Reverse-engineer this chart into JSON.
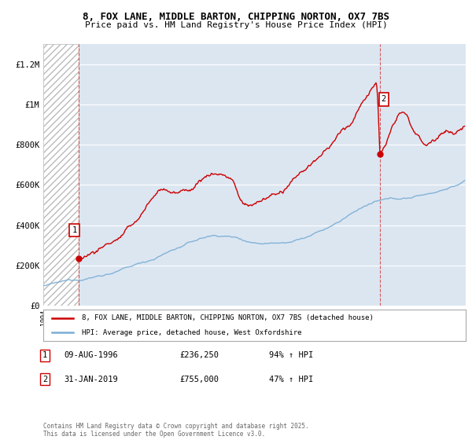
{
  "title1": "8, FOX LANE, MIDDLE BARTON, CHIPPING NORTON, OX7 7BS",
  "title2": "Price paid vs. HM Land Registry's House Price Index (HPI)",
  "ylim": [
    0,
    1300000
  ],
  "xlim_start": 1994.0,
  "xlim_end": 2025.5,
  "yticks": [
    0,
    200000,
    400000,
    600000,
    800000,
    1000000,
    1200000
  ],
  "ytick_labels": [
    "£0",
    "£200K",
    "£400K",
    "£600K",
    "£800K",
    "£1M",
    "£1.2M"
  ],
  "background_color": "#dce6f1",
  "hatch_end_year": 1996.6,
  "red_line_color": "#cc0000",
  "blue_line_color": "#7aadd4",
  "marker1_year": 1996.6,
  "marker1_price": 236250,
  "marker2_year": 2019.08,
  "marker2_price": 755000,
  "legend_red_label": "8, FOX LANE, MIDDLE BARTON, CHIPPING NORTON, OX7 7BS (detached house)",
  "legend_blue_label": "HPI: Average price, detached house, West Oxfordshire",
  "note1_date": "09-AUG-1996",
  "note1_price": "£236,250",
  "note1_hpi": "94% ↑ HPI",
  "note2_date": "31-JAN-2019",
  "note2_price": "£755,000",
  "note2_hpi": "47% ↑ HPI",
  "footer": "Contains HM Land Registry data © Crown copyright and database right 2025.\nThis data is licensed under the Open Government Licence v3.0."
}
